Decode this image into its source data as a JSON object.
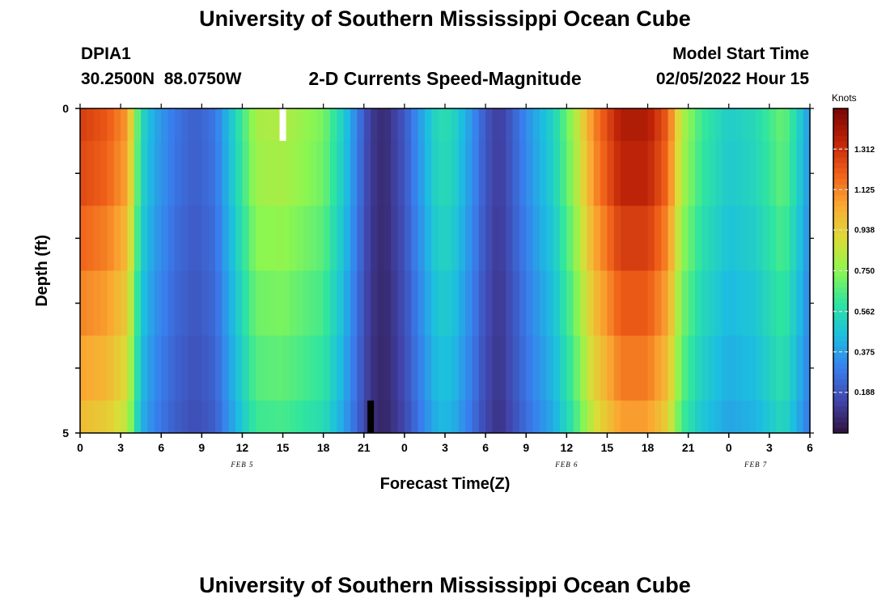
{
  "header": {
    "title": "University of Southern Mississippi Ocean Cube",
    "station_id": "DPIA1",
    "station_coords": "30.2500N  88.0750W",
    "plot_title": "2-D Currents Speed-Magnitude",
    "model_start_label": "Model Start Time",
    "model_start_value": "02/05/2022 Hour 15"
  },
  "footer": {
    "title": "University of Southern Mississippi Ocean Cube"
  },
  "chart_data": {
    "type": "heatmap",
    "title": "2-D Currents Speed-Magnitude",
    "xlabel": "Forecast Time(Z)",
    "ylabel": "Depth (ft)",
    "x_hours": [
      0,
      54
    ],
    "x_tick_labels": [
      "0",
      "3",
      "6",
      "9",
      "12",
      "15",
      "18",
      "21",
      "0",
      "3",
      "6",
      "9",
      "12",
      "15",
      "18",
      "21",
      "0",
      "3",
      "6"
    ],
    "x_date_labels": [
      {
        "text": "FEB 5",
        "hour": 12
      },
      {
        "text": "FEB 6",
        "hour": 36
      },
      {
        "text": "FEB 7",
        "hour": 50
      }
    ],
    "y_tick_labels": [
      {
        "text": "0",
        "depth": 0
      },
      {
        "text": "5",
        "depth": 5
      }
    ],
    "ylim": [
      0,
      5
    ],
    "depth_layers": [
      0,
      0.5,
      1.5,
      2.5,
      3.5,
      4.5,
      5.0
    ],
    "colorbar": {
      "unit": "Knots",
      "min": 0.0,
      "max": 1.5,
      "tick_labels": [
        "0.188",
        "0.375",
        "0.562",
        "0.750",
        "0.938",
        "1.125",
        "1.312"
      ],
      "tick_values": [
        0.188,
        0.375,
        0.562,
        0.75,
        0.938,
        1.125,
        1.312
      ]
    },
    "time_profile": {
      "hours": [
        0,
        2,
        3.5,
        4.5,
        5.5,
        7,
        8.5,
        10,
        11,
        13,
        15,
        18,
        19.5,
        20.5,
        21.5,
        22.5,
        24,
        25.5,
        26.5,
        27.5,
        29,
        30,
        31,
        32,
        33.5,
        35,
        36.5,
        38,
        40,
        42,
        43.5,
        44.5,
        46,
        48,
        50,
        52,
        53,
        54
      ],
      "speed_knots": [
        1.28,
        1.22,
        1.08,
        0.55,
        0.4,
        0.28,
        0.22,
        0.28,
        0.45,
        0.8,
        0.82,
        0.72,
        0.5,
        0.3,
        0.12,
        0.07,
        0.2,
        0.42,
        0.56,
        0.55,
        0.35,
        0.2,
        0.12,
        0.22,
        0.38,
        0.52,
        0.78,
        1.12,
        1.38,
        1.38,
        1.2,
        0.82,
        0.62,
        0.5,
        0.55,
        0.7,
        0.55,
        0.35
      ]
    },
    "depth_factors": [
      1.0,
      0.98,
      0.93,
      0.88,
      0.83,
      0.78
    ],
    "missing_marks": [
      {
        "hour": 15,
        "depth_range": [
          0,
          0.5
        ],
        "color": "#ffffff"
      },
      {
        "hour": 21.5,
        "depth_range": [
          4.5,
          5.0
        ],
        "color": "#000000"
      }
    ]
  }
}
